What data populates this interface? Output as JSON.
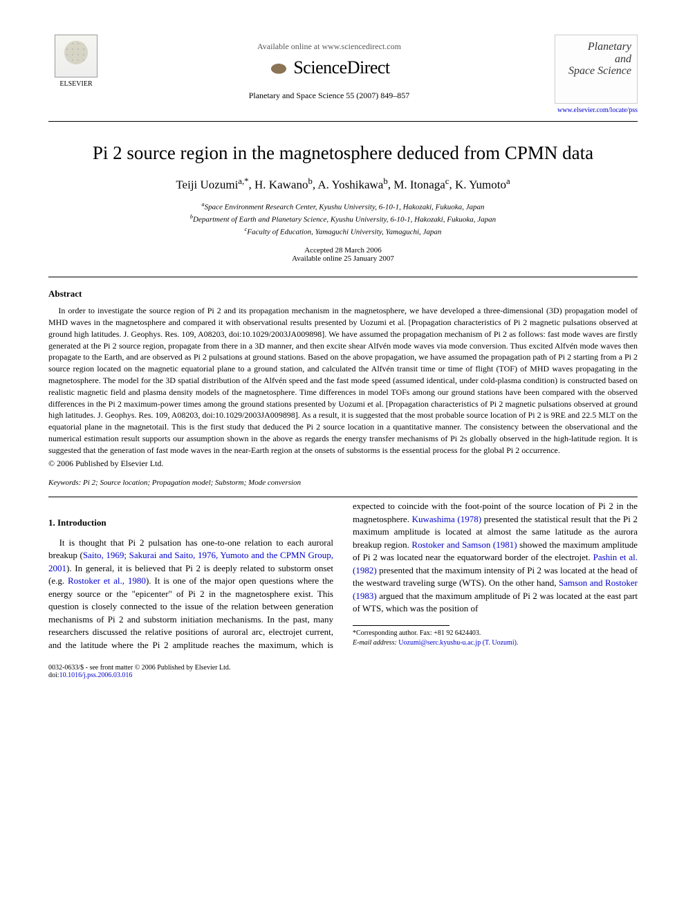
{
  "header": {
    "available_online": "Available online at www.sciencedirect.com",
    "sciencedirect": "ScienceDirect",
    "journal_ref": "Planetary and Space Science 55 (2007) 849–857",
    "elsevier_label": "ELSEVIER",
    "journal_cover_title": "Planetary and Space Science",
    "journal_link": "www.elsevier.com/locate/pss"
  },
  "article": {
    "title": "Pi 2 source region in the magnetosphere deduced from CPMN data",
    "authors_html": "Teiji Uozumi",
    "authors": [
      {
        "name": "Teiji Uozumi",
        "aff": "a",
        "corr": true
      },
      {
        "name": "H. Kawano",
        "aff": "b"
      },
      {
        "name": "A. Yoshikawa",
        "aff": "b"
      },
      {
        "name": "M. Itonaga",
        "aff": "c"
      },
      {
        "name": "K. Yumoto",
        "aff": "a"
      }
    ],
    "affiliations": {
      "a": "Space Environment Research Center, Kyushu University, 6-10-1, Hakozaki, Fukuoka, Japan",
      "b": "Department of Earth and Planetary Science, Kyushu University, 6-10-1, Hakozaki, Fukuoka, Japan",
      "c": "Faculty of Education, Yamaguchi University, Yamaguchi, Japan"
    },
    "accepted": "Accepted 28 March 2006",
    "online": "Available online 25 January 2007"
  },
  "abstract": {
    "heading": "Abstract",
    "body": "In order to investigate the source region of Pi 2 and its propagation mechanism in the magnetosphere, we have developed a three-dimensional (3D) propagation model of MHD waves in the magnetosphere and compared it with observational results presented by Uozumi et al. [Propagation characteristics of Pi 2 magnetic pulsations observed at ground high latitudes. J. Geophys. Res. 109, A08203, doi:10.1029/2003JA009898]. We have assumed the propagation mechanism of Pi 2 as follows: fast mode waves are firstly generated at the Pi 2 source region, propagate from there in a 3D manner, and then excite shear Alfvén mode waves via mode conversion. Thus excited Alfvén mode waves then propagate to the Earth, and are observed as Pi 2 pulsations at ground stations. Based on the above propagation, we have assumed the propagation path of Pi 2 starting from a Pi 2 source region located on the magnetic equatorial plane to a ground station, and calculated the Alfvén transit time or time of flight (TOF) of MHD waves propagating in the magnetosphere. The model for the 3D spatial distribution of the Alfvén speed and the fast mode speed (assumed identical, under cold-plasma condition) is constructed based on realistic magnetic field and plasma density models of the magnetosphere. Time differences in model TOFs among our ground stations have been compared with the observed differences in the Pi 2 maximum-power times among the ground stations presented by Uozumi et al. [Propagation characteristics of Pi 2 magnetic pulsations observed at ground high latitudes. J. Geophys. Res. 109, A08203, doi:10.1029/2003JA009898]. As a result, it is suggested that the most probable source location of Pi 2 is 9RE and 22.5 MLT on the equatorial plane in the magnetotail. This is the first study that deduced the Pi 2 source location in a quantitative manner. The consistency between the observational and the numerical estimation result supports our assumption shown in the above as regards the energy transfer mechanisms of Pi 2s globally observed in the high-latitude region. It is suggested that the generation of fast mode waves in the near-Earth region at the onsets of substorms is the essential process for the global Pi 2 occurrence.",
    "copyright": "© 2006 Published by Elsevier Ltd."
  },
  "keywords": {
    "label": "Keywords:",
    "text": "Pi 2; Source location; Propagation model; Substorm; Mode conversion"
  },
  "intro": {
    "heading": "1. Introduction",
    "para1a": "It is thought that Pi 2 pulsation has one-to-one relation to each auroral breakup (",
    "cite1": "Saito, 1969; Sakurai and Saito, 1976, Yumoto and the CPMN Group, 2001",
    "para1b": "). In general, it is believed that Pi 2 is deeply related to substorm onset (e.g. ",
    "cite2": "Rostoker et al., 1980",
    "para1c": "). It is one of the major open questions where the energy source or the \"epicenter\" of Pi 2 in the magnetosphere exist. This question is closely connected to the issue of the relation between generation mechanisms of Pi 2 and substorm initiation mechanisms. In the past, many researchers discussed the relative positions of auroral arc, electrojet current, and the latitude where the Pi 2 amplitude reaches the maximum, which is expected to coincide with the foot-point of the source location of Pi 2 in the magnetosphere. ",
    "cite3": "Kuwashima (1978)",
    "para1d": " presented the statistical result that the Pi 2 maximum amplitude is located at almost the same latitude as the aurora breakup region. ",
    "cite4": "Rostoker and Samson (1981)",
    "para1e": " showed the maximum amplitude of Pi 2 was located near the equatorward border of the electrojet. ",
    "cite5": "Pashin et al. (1982)",
    "para1f": " presented that the maximum intensity of Pi 2 was located at the head of the westward traveling surge (WTS). On the other hand, ",
    "cite6": "Samson and Rostoker (1983)",
    "para1g": " argued that the maximum amplitude of Pi 2 was located at the east part of WTS, which was the position of"
  },
  "footnote": {
    "corr_label": "*Corresponding author. Fax: +81 92 6424403.",
    "email_label": "E-mail address:",
    "email": "Uozumi@serc.kyushu-u.ac.jp (T. Uozumi)."
  },
  "footer": {
    "line1": "0032-0633/$ - see front matter © 2006 Published by Elsevier Ltd.",
    "line2": "doi:10.1016/j.pss.2006.03.016"
  },
  "colors": {
    "link": "#0000cc",
    "text": "#000000",
    "bg": "#ffffff"
  }
}
